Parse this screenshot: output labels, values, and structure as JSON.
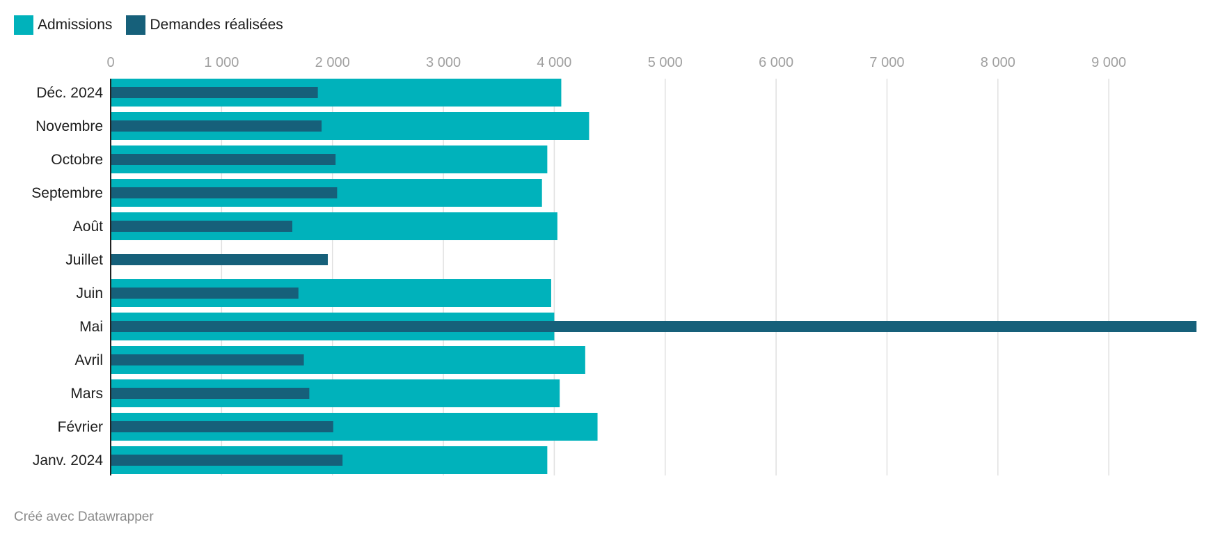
{
  "chart_data": {
    "type": "bar",
    "orientation": "horizontal",
    "title": "",
    "xlabel": "",
    "ylabel": "",
    "xlim": [
      0,
      9800
    ],
    "xticks": [
      0,
      1000,
      2000,
      3000,
      4000,
      5000,
      6000,
      7000,
      8000,
      9000
    ],
    "xtick_labels": [
      "0",
      "1 000",
      "2 000",
      "3 000",
      "4 000",
      "5 000",
      "6 000",
      "7 000",
      "8 000",
      "9 000"
    ],
    "grid": true,
    "legend_position": "top-left",
    "categories": [
      "Déc. 2024",
      "Novembre",
      "Octobre",
      "Septembre",
      "Août",
      "Juillet",
      "Juin",
      "Mai",
      "Avril",
      "Mars",
      "Février",
      "Janv. 2024"
    ],
    "series": [
      {
        "name": "Admissions",
        "color": "#00b2bb",
        "values": [
          4063,
          4314,
          3937,
          3889,
          4028,
          null,
          3972,
          4000,
          4279,
          4049,
          4390,
          3937
        ]
      },
      {
        "name": "Demandes réalisées",
        "color": "#16607a",
        "values": [
          1868,
          1902,
          2028,
          2042,
          1638,
          1958,
          1693,
          9791,
          1742,
          1791,
          2007,
          2091
        ]
      }
    ]
  },
  "footer": "Créé avec Datawrapper"
}
